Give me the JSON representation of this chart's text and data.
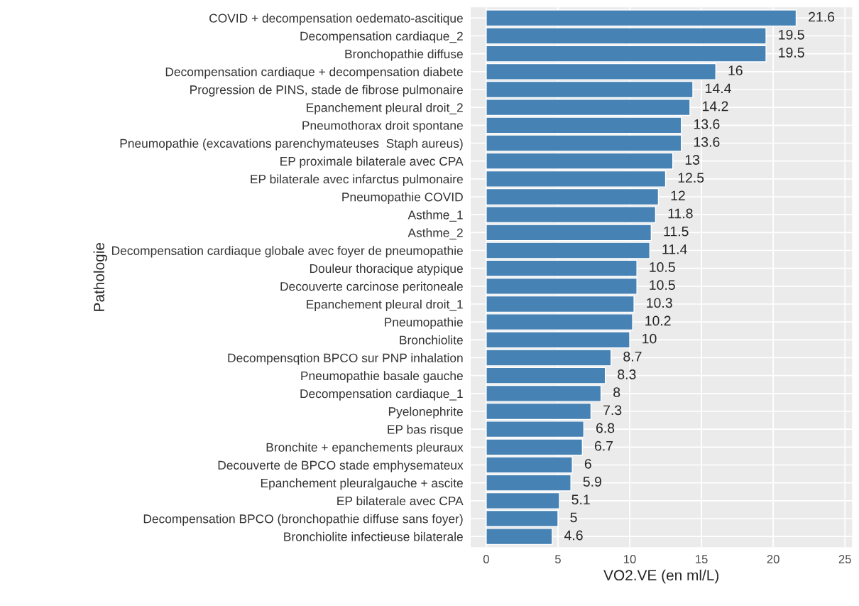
{
  "chart_data": {
    "type": "bar",
    "orientation": "horizontal",
    "xlabel": "VO2.VE (en ml/L)",
    "ylabel": "Pathologie",
    "categories": [
      "COVID + decompensation oedemato-ascitique",
      "Decompensation cardiaque_2",
      "Bronchopathie diffuse",
      "Decompensation cardiaque + decompensation diabete",
      "Progression de PINS, stade de fibrose pulmonaire",
      "Epanchement pleural droit_2",
      "Pneumothorax droit spontane",
      "Pneumopathie (excavations parenchymateuses  Staph aureus)",
      "EP proximale bilaterale avec CPA",
      "EP bilaterale avec infarctus pulmonaire",
      "Pneumopathie COVID",
      "Asthme_1",
      "Asthme_2",
      "Decompensation cardiaque globale avec foyer de pneumopathie",
      "Douleur thoracique atypique",
      "Decouverte carcinose peritoneale",
      "Epanchement pleural droit_1",
      "Pneumopathie",
      "Bronchiolite",
      "Decompensqtion BPCO sur PNP inhalation",
      "Pneumopathie basale gauche",
      "Decompensation cardiaque_1",
      "Pyelonephrite",
      "EP bas risque",
      "Bronchite + epanchements pleuraux",
      "Decouverte de BPCO stade emphysemateux",
      "Epanchement pleuralgauche + ascite",
      "EP bilaterale avec CPA",
      "Decompensation BPCO (bronchopathie diffuse sans foyer)",
      "Bronchiolite infectieuse bilaterale"
    ],
    "values": [
      21.6,
      19.5,
      19.5,
      16,
      14.4,
      14.2,
      13.6,
      13.6,
      13,
      12.5,
      12,
      11.8,
      11.5,
      11.4,
      10.5,
      10.5,
      10.3,
      10.2,
      10,
      8.7,
      8.3,
      8,
      7.3,
      6.8,
      6.7,
      6,
      5.9,
      5.1,
      5,
      4.6
    ],
    "color": "#4682b4",
    "data_labels": true,
    "xlim": [
      -1.08,
      25.5
    ],
    "xticks": [
      0,
      5,
      10,
      15,
      20,
      25
    ],
    "grid": true
  }
}
